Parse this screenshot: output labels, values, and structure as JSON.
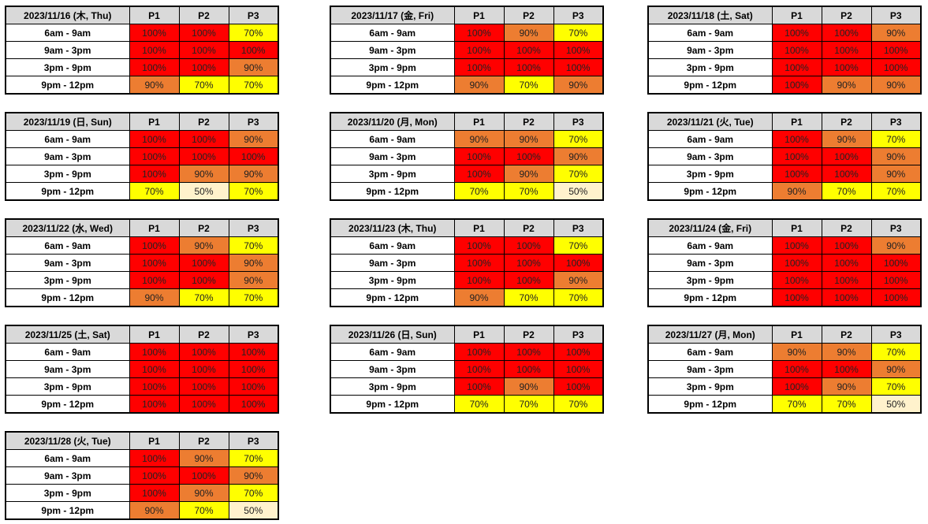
{
  "colors": {
    "100%": "#ff0000",
    "90%": "#ed7d31",
    "70%": "#ffff00",
    "50%": "#fff2cc"
  },
  "columns": [
    "P1",
    "P2",
    "P3"
  ],
  "slots": [
    "6am - 9am",
    "9am - 3pm",
    "3pm - 9pm",
    "9pm - 12pm"
  ],
  "tables": [
    {
      "date": "2023/11/16 (木, Thu)",
      "rows": [
        [
          "100%",
          "100%",
          "70%"
        ],
        [
          "100%",
          "100%",
          "100%"
        ],
        [
          "100%",
          "100%",
          "90%"
        ],
        [
          "90%",
          "70%",
          "70%"
        ]
      ]
    },
    {
      "date": "2023/11/17 (金, Fri)",
      "rows": [
        [
          "100%",
          "90%",
          "70%"
        ],
        [
          "100%",
          "100%",
          "100%"
        ],
        [
          "100%",
          "100%",
          "100%"
        ],
        [
          "90%",
          "70%",
          "90%"
        ]
      ]
    },
    {
      "date": "2023/11/18 (土, Sat)",
      "rows": [
        [
          "100%",
          "100%",
          "90%"
        ],
        [
          "100%",
          "100%",
          "100%"
        ],
        [
          "100%",
          "100%",
          "100%"
        ],
        [
          "100%",
          "90%",
          "90%"
        ]
      ]
    },
    {
      "date": "2023/11/19 (日, Sun)",
      "rows": [
        [
          "100%",
          "100%",
          "90%"
        ],
        [
          "100%",
          "100%",
          "100%"
        ],
        [
          "100%",
          "90%",
          "90%"
        ],
        [
          "70%",
          "50%",
          "70%"
        ]
      ]
    },
    {
      "date": "2023/11/20 (月, Mon)",
      "rows": [
        [
          "90%",
          "90%",
          "70%"
        ],
        [
          "100%",
          "100%",
          "90%"
        ],
        [
          "100%",
          "90%",
          "70%"
        ],
        [
          "70%",
          "70%",
          "50%"
        ]
      ]
    },
    {
      "date": "2023/11/21 (火, Tue)",
      "rows": [
        [
          "100%",
          "90%",
          "70%"
        ],
        [
          "100%",
          "100%",
          "90%"
        ],
        [
          "100%",
          "100%",
          "90%"
        ],
        [
          "90%",
          "70%",
          "70%"
        ]
      ]
    },
    {
      "date": "2023/11/22 (水, Wed)",
      "rows": [
        [
          "100%",
          "90%",
          "70%"
        ],
        [
          "100%",
          "100%",
          "90%"
        ],
        [
          "100%",
          "100%",
          "90%"
        ],
        [
          "90%",
          "70%",
          "70%"
        ]
      ]
    },
    {
      "date": "2023/11/23 (木, Thu)",
      "rows": [
        [
          "100%",
          "100%",
          "70%"
        ],
        [
          "100%",
          "100%",
          "100%"
        ],
        [
          "100%",
          "100%",
          "90%"
        ],
        [
          "90%",
          "70%",
          "70%"
        ]
      ]
    },
    {
      "date": "2023/11/24 (金, Fri)",
      "rows": [
        [
          "100%",
          "100%",
          "90%"
        ],
        [
          "100%",
          "100%",
          "100%"
        ],
        [
          "100%",
          "100%",
          "100%"
        ],
        [
          "100%",
          "100%",
          "100%"
        ]
      ]
    },
    {
      "date": "2023/11/25 (土, Sat)",
      "rows": [
        [
          "100%",
          "100%",
          "100%"
        ],
        [
          "100%",
          "100%",
          "100%"
        ],
        [
          "100%",
          "100%",
          "100%"
        ],
        [
          "100%",
          "100%",
          "100%"
        ]
      ]
    },
    {
      "date": "2023/11/26 (日, Sun)",
      "rows": [
        [
          "100%",
          "100%",
          "100%"
        ],
        [
          "100%",
          "100%",
          "100%"
        ],
        [
          "100%",
          "90%",
          "100%"
        ],
        [
          "70%",
          "70%",
          "70%"
        ]
      ]
    },
    {
      "date": "2023/11/27 (月, Mon)",
      "rows": [
        [
          "90%",
          "90%",
          "70%"
        ],
        [
          "100%",
          "100%",
          "90%"
        ],
        [
          "100%",
          "90%",
          "70%"
        ],
        [
          "70%",
          "70%",
          "50%"
        ]
      ]
    },
    {
      "date": "2023/11/28 (火, Tue)",
      "rows": [
        [
          "100%",
          "90%",
          "70%"
        ],
        [
          "100%",
          "100%",
          "90%"
        ],
        [
          "100%",
          "90%",
          "70%"
        ],
        [
          "90%",
          "70%",
          "50%"
        ]
      ]
    }
  ]
}
